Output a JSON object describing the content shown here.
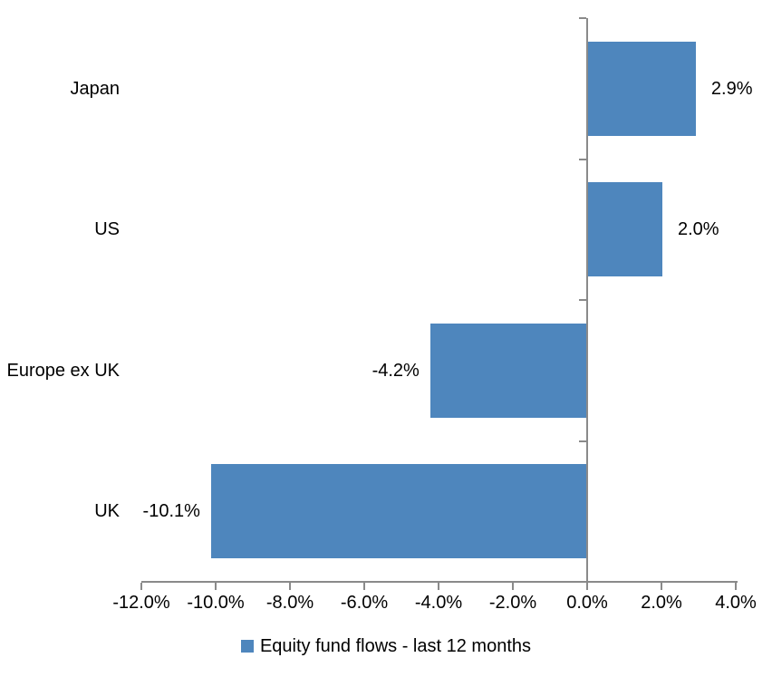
{
  "chart_data": {
    "type": "bar",
    "orientation": "horizontal",
    "categories": [
      "Japan",
      "US",
      "Europe ex UK",
      "UK"
    ],
    "values": [
      2.9,
      2.0,
      -4.2,
      -10.1
    ],
    "data_labels": [
      "2.9%",
      "2.0%",
      "-4.2%",
      "-10.1%"
    ],
    "x_ticks": [
      -12,
      -10,
      -8,
      -6,
      -4,
      -2,
      0,
      2,
      4
    ],
    "x_tick_labels": [
      "-12.0%",
      "-10.0%",
      "-8.0%",
      "-6.0%",
      "-4.0%",
      "-2.0%",
      "0.0%",
      "2.0%",
      "4.0%"
    ],
    "xlim": [
      -12,
      4
    ],
    "title": "",
    "xlabel": "",
    "ylabel": "",
    "grid": false,
    "legend_position": "bottom",
    "legend": [
      {
        "label": "Equity fund flows - last 12 months",
        "color": "#4e86bd"
      }
    ],
    "colors": {
      "bar": "#4e86bd",
      "axis": "#8a8a8a",
      "text": "#000000",
      "background": "#ffffff"
    }
  }
}
